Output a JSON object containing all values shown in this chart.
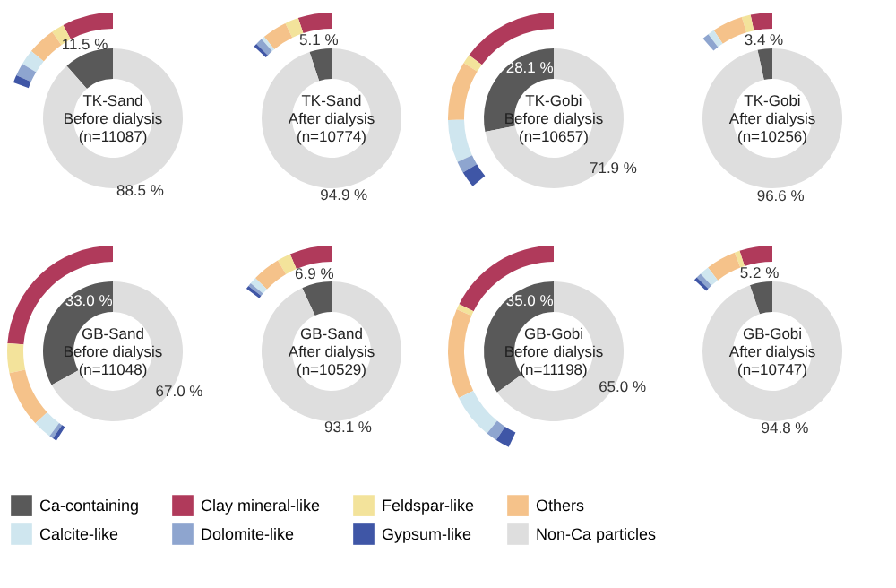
{
  "chart_data": [
    {
      "type": "donut",
      "title": "TK-Sand",
      "subtitle": "Before dialysis",
      "annotations": [
        "(n=11087)"
      ],
      "legend": "bottom",
      "categories": [
        "Ca-containing",
        "Clay mineral-like",
        "Feldspar-like",
        "Others",
        "Calcite-like",
        "Dolomite-like",
        "Gypsum-like",
        "Non-Ca particles"
      ],
      "colors": [
        "#595959",
        "#b03a5b",
        "#f3e39b",
        "#f5c28a",
        "#cfe6ef",
        "#8ea5cf",
        "#3f56a6",
        "#dedede"
      ],
      "series": [
        {
          "values": [
            11.5,
            null,
            null,
            null,
            null,
            null,
            null,
            88.5
          ],
          "value_labels": [
            "11.5 %",
            null,
            null,
            null,
            null,
            null,
            null,
            "88.5 %"
          ]
        },
        {
          "values": [
            null,
            40,
            10,
            22,
            12,
            10,
            6,
            null
          ]
        }
      ]
    },
    {
      "type": "donut",
      "title": "TK-Sand",
      "subtitle": "After dialysis",
      "annotations": [
        "(n=10774)"
      ],
      "categories": [
        null,
        null,
        null,
        null,
        null,
        null,
        null,
        null
      ],
      "colors": [
        "#595959",
        "#b03a5b",
        "#f3e39b",
        "#f5c28a",
        "#cfe6ef",
        "#8ea5cf",
        "#3f56a6",
        "#dedede"
      ],
      "series": [
        {
          "values": [
            5.1,
            null,
            null,
            null,
            null,
            null,
            null,
            94.9
          ],
          "value_labels": [
            "5.1 %",
            null,
            null,
            null,
            null,
            null,
            null,
            "94.9 %"
          ]
        },
        {
          "values": [
            null,
            39,
            16,
            29,
            4,
            8,
            4,
            null
          ]
        }
      ]
    },
    {
      "type": "donut",
      "title": "TK-Gobi",
      "subtitle": "Before dialysis",
      "annotations": [
        "(n=10657)"
      ],
      "categories": [
        null,
        null,
        null,
        null,
        null,
        null,
        null,
        null
      ],
      "colors": [
        "#595959",
        "#b03a5b",
        "#f3e39b",
        "#f5c28a",
        "#cfe6ef",
        "#8ea5cf",
        "#3f56a6",
        "#dedede"
      ],
      "series": [
        {
          "values": [
            28.1,
            null,
            null,
            null,
            null,
            null,
            null,
            71.9
          ],
          "value_labels": [
            "28.1 %",
            null,
            null,
            null,
            null,
            null,
            null,
            "71.9 %"
          ]
        },
        {
          "values": [
            null,
            41,
            4,
            25,
            18,
            5,
            7,
            null
          ]
        }
      ]
    },
    {
      "type": "donut",
      "title": "TK-Gobi",
      "subtitle": "After dialysis",
      "annotations": [
        "(n=10256)"
      ],
      "categories": [
        null,
        null,
        null,
        null,
        null,
        null,
        null,
        null
      ],
      "colors": [
        "#595959",
        "#b03a5b",
        "#f3e39b",
        "#f5c28a",
        "#cfe6ef",
        "#8ea5cf",
        "#3f56a6",
        "#dedede"
      ],
      "series": [
        {
          "values": [
            3.4,
            null,
            null,
            null,
            null,
            null,
            null,
            96.6
          ],
          "value_labels": [
            "3.4 %",
            null,
            null,
            null,
            null,
            null,
            null,
            "96.6 %"
          ]
        },
        {
          "values": [
            null,
            29,
            12,
            41,
            9,
            9,
            null,
            null
          ]
        }
      ]
    },
    {
      "type": "donut",
      "title": "GB-Sand",
      "subtitle": "Before dialysis",
      "annotations": [
        "(n=11048)"
      ],
      "categories": [
        null,
        null,
        null,
        null,
        null,
        null,
        null,
        null
      ],
      "colors": [
        "#595959",
        "#b03a5b",
        "#f3e39b",
        "#f5c28a",
        "#cfe6ef",
        "#8ea5cf",
        "#3f56a6",
        "#dedede"
      ],
      "series": [
        {
          "values": [
            33.0,
            null,
            null,
            null,
            null,
            null,
            null,
            67.0
          ],
          "value_labels": [
            "33.0 %",
            null,
            null,
            null,
            null,
            null,
            null,
            "67.0 %"
          ]
        },
        {
          "values": [
            null,
            58,
            11,
            21,
            7,
            1.5,
            1.5,
            null
          ]
        }
      ]
    },
    {
      "type": "donut",
      "title": "GB-Sand",
      "subtitle": "After dialysis",
      "annotations": [
        "(n=10529)"
      ],
      "categories": [
        null,
        null,
        null,
        null,
        null,
        null,
        null,
        null
      ],
      "colors": [
        "#595959",
        "#b03a5b",
        "#f3e39b",
        "#f5c28a",
        "#cfe6ef",
        "#8ea5cf",
        "#3f56a6",
        "#dedede"
      ],
      "series": [
        {
          "values": [
            6.9,
            null,
            null,
            null,
            null,
            null,
            null,
            93.1
          ],
          "value_labels": [
            "6.9 %",
            null,
            null,
            null,
            null,
            null,
            null,
            "93.1 %"
          ]
        },
        {
          "values": [
            null,
            43,
            14,
            29,
            7,
            3.5,
            3.5,
            null
          ]
        }
      ]
    },
    {
      "type": "donut",
      "title": "GB-Gobi",
      "subtitle": "Before dialysis",
      "annotations": [
        "(n=11198)"
      ],
      "categories": [
        null,
        null,
        null,
        null,
        null,
        null,
        null,
        null
      ],
      "colors": [
        "#595959",
        "#b03a5b",
        "#f3e39b",
        "#f5c28a",
        "#cfe6ef",
        "#8ea5cf",
        "#3f56a6",
        "#dedede"
      ],
      "series": [
        {
          "values": [
            35.0,
            null,
            null,
            null,
            null,
            null,
            null,
            65.0
          ],
          "value_labels": [
            "35.0 %",
            null,
            null,
            null,
            null,
            null,
            null,
            "65.0 %"
          ]
        },
        {
          "values": [
            null,
            41,
            2,
            32,
            16,
            4,
            5,
            null
          ]
        }
      ]
    },
    {
      "type": "donut",
      "title": "GB-Gobi",
      "subtitle": "After dialysis",
      "annotations": [
        "(n=10747)"
      ],
      "categories": [
        null,
        null,
        null,
        null,
        null,
        null,
        null,
        null
      ],
      "colors": [
        "#595959",
        "#b03a5b",
        "#f3e39b",
        "#f5c28a",
        "#cfe6ef",
        "#8ea5cf",
        "#3f56a6",
        "#dedede"
      ],
      "series": [
        {
          "values": [
            5.2,
            null,
            null,
            null,
            null,
            null,
            null,
            94.8
          ],
          "value_labels": [
            "5.2 %",
            null,
            null,
            null,
            null,
            null,
            null,
            "94.8 %"
          ]
        },
        {
          "values": [
            null,
            38,
            6,
            35,
            11,
            6,
            4,
            null
          ]
        }
      ]
    }
  ]
}
